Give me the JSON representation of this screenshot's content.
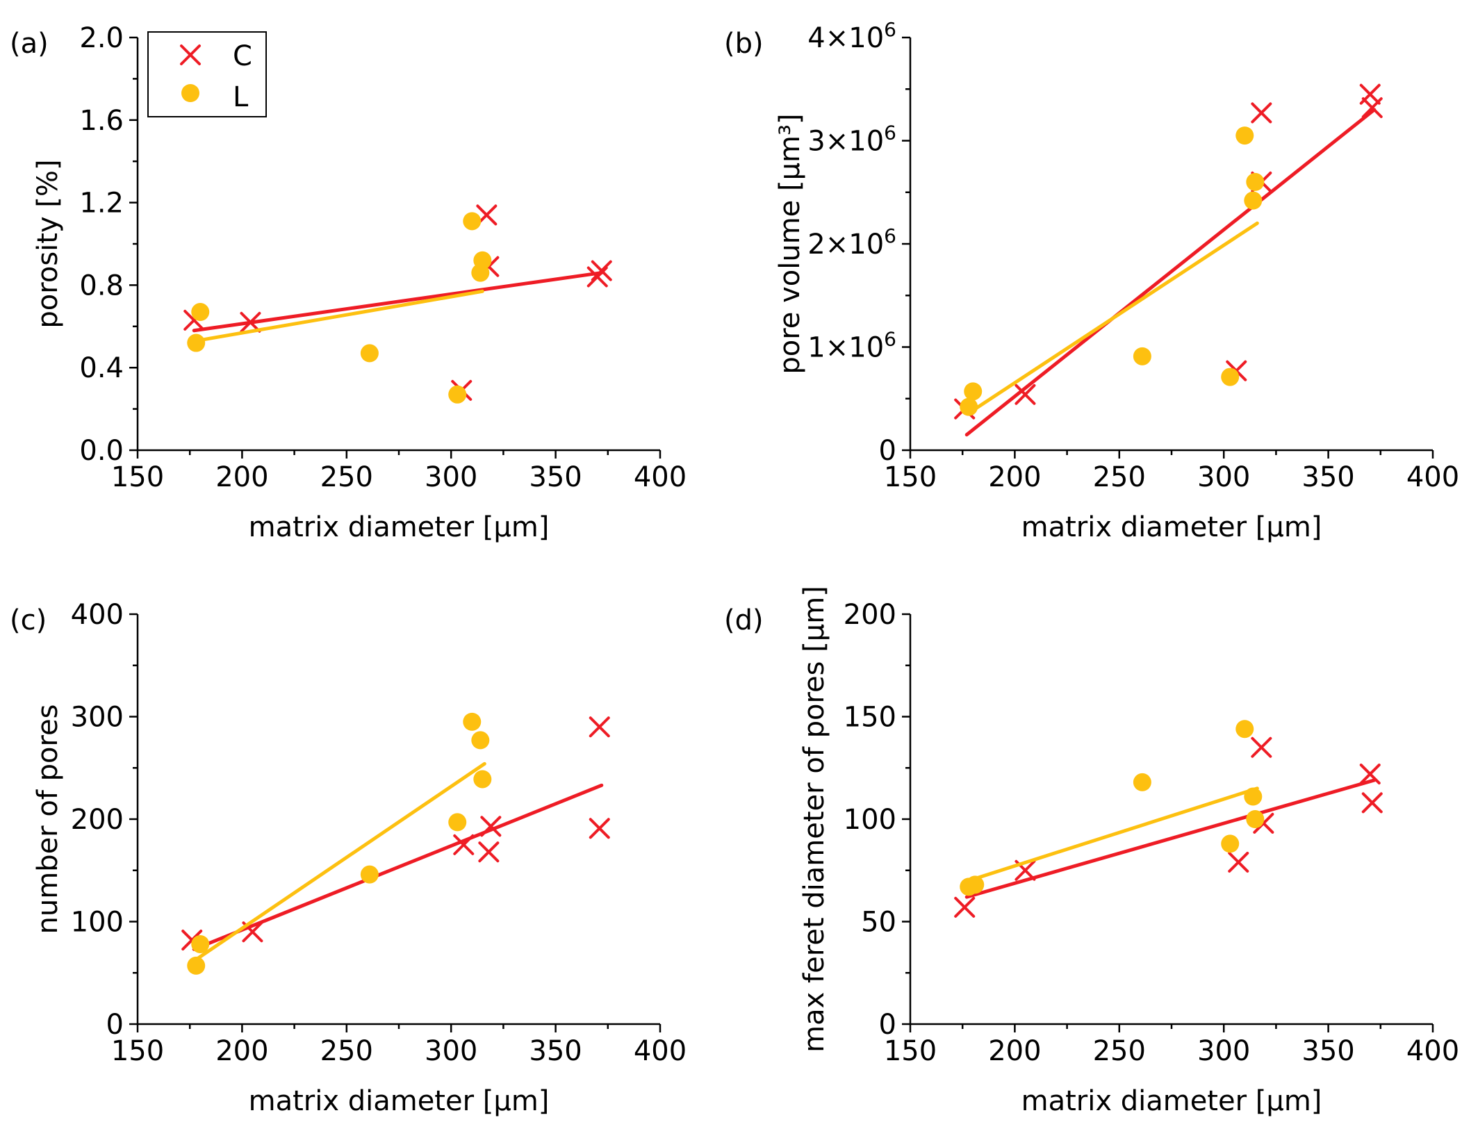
{
  "colors": {
    "C": "#ee1c25",
    "L": "#fdc010"
  },
  "legend": {
    "entries": [
      {
        "label": "C",
        "marker": "cross"
      },
      {
        "label": "L",
        "marker": "circle"
      }
    ]
  },
  "chart_data": [
    {
      "panel": "(a)",
      "type": "scatter",
      "xlabel": "matrix diameter [µm]",
      "ylabel": "porosity [%]",
      "xlim": [
        150,
        400
      ],
      "ylim": [
        0,
        2.0
      ],
      "xticks": [
        150,
        200,
        250,
        300,
        350,
        400
      ],
      "xtick_labels": [
        "150",
        "200",
        "250",
        "300",
        "350",
        "400"
      ],
      "yticks": [
        0,
        0.4,
        0.8,
        1.2,
        1.6,
        2.0
      ],
      "ytick_labels": [
        "0.0",
        "0.4",
        "0.8",
        "1.2",
        "1.6",
        "2.0"
      ],
      "series": [
        {
          "name": "C",
          "marker": "cross",
          "points": [
            [
              177,
              0.63
            ],
            [
              204,
              0.62
            ],
            [
              305,
              0.29
            ],
            [
              317,
              1.14
            ],
            [
              318,
              0.89
            ],
            [
              370,
              0.84
            ],
            [
              372,
              0.87
            ]
          ],
          "fit": [
            [
              177,
              0.58
            ],
            [
              372,
              0.86
            ]
          ]
        },
        {
          "name": "L",
          "marker": "circle",
          "points": [
            [
              178,
              0.52
            ],
            [
              180,
              0.67
            ],
            [
              261,
              0.47
            ],
            [
              303,
              0.27
            ],
            [
              310,
              1.11
            ],
            [
              314,
              0.86
            ],
            [
              315,
              0.92
            ]
          ],
          "fit": [
            [
              178,
              0.53
            ],
            [
              315,
              0.77
            ]
          ]
        }
      ]
    },
    {
      "panel": "(b)",
      "type": "scatter",
      "xlabel": "matrix diameter [µm]",
      "ylabel": "pore volume [µm³]",
      "xlim": [
        150,
        400
      ],
      "ylim": [
        0,
        4000000
      ],
      "xticks": [
        150,
        200,
        250,
        300,
        350,
        400
      ],
      "xtick_labels": [
        "150",
        "200",
        "250",
        "300",
        "350",
        "400"
      ],
      "yticks": [
        0,
        1000000,
        2000000,
        3000000,
        4000000
      ],
      "ytick_labels": [
        "0",
        "1×10⁶",
        "2×10⁶",
        "3×10⁶",
        "4×10⁶"
      ],
      "series": [
        {
          "name": "C",
          "marker": "cross",
          "points": [
            [
              176,
              400000
            ],
            [
              205,
              540000
            ],
            [
              306,
              770000
            ],
            [
              318,
              3270000
            ],
            [
              318,
              2600000
            ],
            [
              370,
              3450000
            ],
            [
              371,
              3320000
            ]
          ],
          "fit": [
            [
              177,
              150000
            ],
            [
              372,
              3300000
            ]
          ]
        },
        {
          "name": "L",
          "marker": "circle",
          "points": [
            [
              178,
              420000
            ],
            [
              180,
              570000
            ],
            [
              261,
              910000
            ],
            [
              303,
              710000
            ],
            [
              310,
              3050000
            ],
            [
              314,
              2420000
            ],
            [
              315,
              2600000
            ]
          ],
          "fit": [
            [
              178,
              360000
            ],
            [
              316,
              2200000
            ]
          ]
        }
      ]
    },
    {
      "panel": "(c)",
      "type": "scatter",
      "xlabel": "matrix diameter [µm]",
      "ylabel": "number of pores",
      "xlim": [
        150,
        400
      ],
      "ylim": [
        0,
        400
      ],
      "xticks": [
        150,
        200,
        250,
        300,
        350,
        400
      ],
      "xtick_labels": [
        "150",
        "200",
        "250",
        "300",
        "350",
        "400"
      ],
      "yticks": [
        0,
        100,
        200,
        300,
        400
      ],
      "ytick_labels": [
        "0",
        "100",
        "200",
        "300",
        "400"
      ],
      "series": [
        {
          "name": "C",
          "marker": "cross",
          "points": [
            [
              176,
              82
            ],
            [
              205,
              90
            ],
            [
              306,
              175
            ],
            [
              318,
              168
            ],
            [
              319,
              193
            ],
            [
              371,
              290
            ],
            [
              371,
              191
            ]
          ],
          "fit": [
            [
              177,
              73
            ],
            [
              372,
              233
            ]
          ]
        },
        {
          "name": "L",
          "marker": "circle",
          "points": [
            [
              178,
              57
            ],
            [
              180,
              78
            ],
            [
              261,
              146
            ],
            [
              303,
              197
            ],
            [
              310,
              295
            ],
            [
              314,
              277
            ],
            [
              315,
              239
            ]
          ],
          "fit": [
            [
              178,
              63
            ],
            [
              316,
              254
            ]
          ]
        }
      ]
    },
    {
      "panel": "(d)",
      "type": "scatter",
      "xlabel": "matrix diameter [µm]",
      "ylabel": "max feret diameter of pores [µm]",
      "xlim": [
        150,
        400
      ],
      "ylim": [
        0,
        200
      ],
      "xticks": [
        150,
        200,
        250,
        300,
        350,
        400
      ],
      "xtick_labels": [
        "150",
        "200",
        "250",
        "300",
        "350",
        "400"
      ],
      "yticks": [
        0,
        50,
        100,
        150,
        200
      ],
      "ytick_labels": [
        "0",
        "50",
        "100",
        "150",
        "200"
      ],
      "series": [
        {
          "name": "C",
          "marker": "cross",
          "points": [
            [
              176,
              57
            ],
            [
              205,
              75
            ],
            [
              307,
              79
            ],
            [
              318,
              135
            ],
            [
              319,
              98
            ],
            [
              370,
              122
            ],
            [
              371,
              108
            ]
          ],
          "fit": [
            [
              177,
              62
            ],
            [
              372,
              119
            ]
          ]
        },
        {
          "name": "L",
          "marker": "circle",
          "points": [
            [
              178,
              67
            ],
            [
              181,
              68
            ],
            [
              261,
              118
            ],
            [
              303,
              88
            ],
            [
              310,
              144
            ],
            [
              314,
              111
            ],
            [
              315,
              100
            ]
          ],
          "fit": [
            [
              178,
              70
            ],
            [
              316,
              115
            ]
          ]
        }
      ]
    }
  ]
}
